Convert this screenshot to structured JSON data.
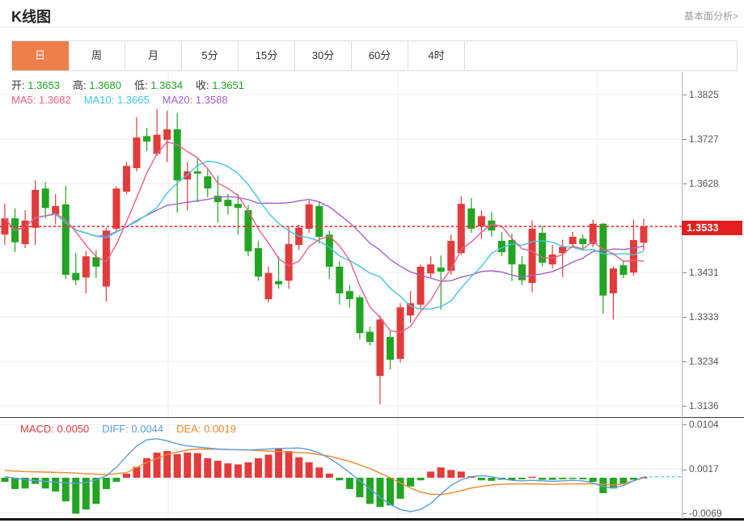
{
  "header": {
    "title": "K线图",
    "link": "基本面分析>"
  },
  "tabs": {
    "items": [
      "日",
      "周",
      "月",
      "5分",
      "15分",
      "30分",
      "60分",
      "4时"
    ],
    "active_index": 0
  },
  "overlay": {
    "ohlc": [
      {
        "name": "open",
        "label": "开:",
        "value": "1.3653"
      },
      {
        "name": "high",
        "label": "高:",
        "value": "1.3680"
      },
      {
        "name": "low",
        "label": "低:",
        "value": "1.3634"
      },
      {
        "name": "close",
        "label": "收:",
        "value": "1.3651"
      }
    ],
    "ma": [
      {
        "name": "ma5",
        "label": "MA5:",
        "value": "1.3682",
        "color": "#ec5f87"
      },
      {
        "name": "ma10",
        "label": "MA10:",
        "value": "1.3665",
        "color": "#3ec7e0"
      },
      {
        "name": "ma20",
        "label": "MA20:",
        "value": "1.3588",
        "color": "#a362c8"
      }
    ],
    "macd": [
      {
        "name": "macd",
        "label": "MACD:",
        "value": "0.0050",
        "color": "#e23b3b"
      },
      {
        "name": "diff",
        "label": "DIFF:",
        "value": "0.0044",
        "color": "#5a9ce0"
      },
      {
        "name": "dea",
        "label": "DEA:",
        "value": "0.0019",
        "color": "#f0882a"
      }
    ]
  },
  "colors": {
    "up": "#e23b3b",
    "down": "#22a522",
    "value_green": "#22a122",
    "ma5": "#ec5f87",
    "ma10": "#3ec7e0",
    "ma20": "#a362c8",
    "diff": "#5a9ce0",
    "dea": "#f0882a",
    "price_line": "#ff2a2a",
    "price_tag_bg": "#e32020",
    "grid": "#ececec",
    "zero_dash": "#6fcfcf"
  },
  "chart_data": {
    "type": "candlestick_with_macd",
    "title": "K线图 (daily K-line with MA5/MA10/MA20 and MACD)",
    "legend_position": "top-left overlay",
    "grid": {
      "on": true,
      "v_lines_x": [
        208,
        492,
        738
      ]
    },
    "main_panel": {
      "price_axis_ticks": [
        "1.3825",
        "1.3727",
        "1.3628",
        "1.3533",
        "1.3431",
        "1.3333",
        "1.3234",
        "1.3136"
      ],
      "highlight_tick_index": 3,
      "ylim": [
        1.3136,
        1.3825
      ],
      "current_price": 1.3533,
      "current_price_label": "1.3533",
      "ma_windows": [
        5,
        10,
        20
      ],
      "candles_format": [
        "open",
        "high",
        "low",
        "close"
      ],
      "candles": [
        [
          1.3515,
          1.3584,
          1.3492,
          1.3551
        ],
        [
          1.3551,
          1.3573,
          1.3476,
          1.3498
        ],
        [
          1.3494,
          1.3569,
          1.3485,
          1.3546
        ],
        [
          1.353,
          1.3635,
          1.3492,
          1.3614
        ],
        [
          1.3617,
          1.3631,
          1.3551,
          1.3574
        ],
        [
          1.356,
          1.3605,
          1.3537,
          1.3578
        ],
        [
          1.3582,
          1.3623,
          1.3417,
          1.3426
        ],
        [
          1.343,
          1.3474,
          1.3403,
          1.3414
        ],
        [
          1.342,
          1.3479,
          1.3385,
          1.3467
        ],
        [
          1.3465,
          1.3481,
          1.3419,
          1.3444
        ],
        [
          1.34,
          1.353,
          1.3367,
          1.3524
        ],
        [
          1.3528,
          1.3622,
          1.3519,
          1.3617
        ],
        [
          1.361,
          1.3676,
          1.3605,
          1.3667
        ],
        [
          1.3662,
          1.3775,
          1.3655,
          1.373
        ],
        [
          1.3733,
          1.3751,
          1.37,
          1.3721
        ],
        [
          1.3694,
          1.3793,
          1.3689,
          1.3736
        ],
        [
          1.3725,
          1.3789,
          1.3676,
          1.3748
        ],
        [
          1.3748,
          1.3784,
          1.3564,
          1.3635
        ],
        [
          1.3637,
          1.3676,
          1.3569,
          1.3655
        ],
        [
          1.3655,
          1.3686,
          1.3587,
          1.365
        ],
        [
          1.3644,
          1.366,
          1.3598,
          1.3617
        ],
        [
          1.3601,
          1.3646,
          1.3542,
          1.3587
        ],
        [
          1.3592,
          1.3605,
          1.356,
          1.3578
        ],
        [
          1.3583,
          1.3605,
          1.3515,
          1.3574
        ],
        [
          1.3569,
          1.358,
          1.3467,
          1.3478
        ],
        [
          1.3485,
          1.3501,
          1.3413,
          1.3422
        ],
        [
          1.3372,
          1.3444,
          1.3365,
          1.343
        ],
        [
          1.3412,
          1.3467,
          1.3395,
          1.3405
        ],
        [
          1.3413,
          1.3533,
          1.3395,
          1.3494
        ],
        [
          1.3492,
          1.3537,
          1.3481,
          1.353
        ],
        [
          1.3528,
          1.3591,
          1.3519,
          1.3582
        ],
        [
          1.3578,
          1.3589,
          1.3495,
          1.351
        ],
        [
          1.3515,
          1.3524,
          1.3417,
          1.3444
        ],
        [
          1.3444,
          1.3456,
          1.336,
          1.3385
        ],
        [
          1.339,
          1.3403,
          1.3353,
          1.3372
        ],
        [
          1.3376,
          1.3381,
          1.3283,
          1.3297
        ],
        [
          1.33,
          1.3311,
          1.327,
          1.3277
        ],
        [
          1.3202,
          1.3336,
          1.3139,
          1.3327
        ],
        [
          1.3288,
          1.3302,
          1.3216,
          1.3238
        ],
        [
          1.324,
          1.3363,
          1.3232,
          1.3354
        ],
        [
          1.3336,
          1.339,
          1.332,
          1.3363
        ],
        [
          1.336,
          1.3449,
          1.335,
          1.3444
        ],
        [
          1.3429,
          1.3467,
          1.342,
          1.3449
        ],
        [
          1.3442,
          1.3469,
          1.3349,
          1.3433
        ],
        [
          1.3435,
          1.3515,
          1.3426,
          1.3501
        ],
        [
          1.3474,
          1.36,
          1.347,
          1.3583
        ],
        [
          1.3573,
          1.3596,
          1.3519,
          1.3528
        ],
        [
          1.3533,
          1.3569,
          1.3505,
          1.3556
        ],
        [
          1.3546,
          1.3565,
          1.351,
          1.3524
        ],
        [
          1.3501,
          1.3521,
          1.3467,
          1.3476
        ],
        [
          1.3503,
          1.3517,
          1.3412,
          1.3449
        ],
        [
          1.3449,
          1.3467,
          1.3403,
          1.3414
        ],
        [
          1.3408,
          1.3546,
          1.3387,
          1.3528
        ],
        [
          1.3519,
          1.3535,
          1.3444,
          1.3453
        ],
        [
          1.3449,
          1.3492,
          1.344,
          1.3471
        ],
        [
          1.3474,
          1.3504,
          1.3421,
          1.3488
        ],
        [
          1.3494,
          1.3521,
          1.3485,
          1.351
        ],
        [
          1.3506,
          1.3515,
          1.3485,
          1.3494
        ],
        [
          1.3494,
          1.3548,
          1.3487,
          1.3539
        ],
        [
          1.3539,
          1.3541,
          1.334,
          1.338
        ],
        [
          1.3385,
          1.3444,
          1.3327,
          1.344
        ],
        [
          1.3447,
          1.3458,
          1.3419,
          1.3426
        ],
        [
          1.3431,
          1.3548,
          1.3424,
          1.3503
        ],
        [
          1.3497,
          1.355,
          1.348,
          1.3533
        ]
      ]
    },
    "macd_panel": {
      "axis_ticks": [
        "0.0104",
        "0.0017",
        "-0.0069"
      ],
      "axis_tick_values": [
        0.0104,
        0.0017,
        -0.0069
      ],
      "value_unit": 0.0001,
      "histogram": [
        -8,
        -22,
        -21,
        -12,
        -21,
        -27,
        -46,
        -70,
        -62,
        -51,
        -22,
        -8,
        8,
        21,
        38,
        49,
        52,
        46,
        49,
        48,
        38,
        33,
        28,
        26,
        30,
        38,
        45,
        57,
        52,
        40,
        30,
        20,
        8,
        -5,
        -22,
        -38,
        -51,
        -57,
        -54,
        -41,
        -17,
        -5,
        12,
        20,
        15,
        12,
        3,
        -5,
        -6,
        -4,
        -5,
        -3,
        2,
        -4,
        -4,
        -3,
        -2,
        -3,
        -8,
        -30,
        -21,
        -13,
        -4,
        1
      ],
      "diff_line": [
        [
          0,
          2
        ],
        [
          2,
          -4
        ],
        [
          4,
          -7
        ],
        [
          6,
          -10
        ],
        [
          7,
          -11
        ],
        [
          8,
          -9
        ],
        [
          9,
          -4
        ],
        [
          10,
          4
        ],
        [
          11,
          20
        ],
        [
          12,
          42
        ],
        [
          13,
          62
        ],
        [
          14,
          74
        ],
        [
          15,
          76
        ],
        [
          16,
          72
        ],
        [
          17,
          66
        ],
        [
          18,
          62
        ],
        [
          19,
          60
        ],
        [
          20,
          58
        ],
        [
          21,
          56
        ],
        [
          22,
          55
        ],
        [
          24,
          54
        ],
        [
          25,
          55
        ],
        [
          27,
          57
        ],
        [
          29,
          58
        ],
        [
          30,
          55
        ],
        [
          31,
          48
        ],
        [
          32,
          38
        ],
        [
          33,
          25
        ],
        [
          34,
          10
        ],
        [
          35,
          -6
        ],
        [
          36,
          -22
        ],
        [
          37,
          -38
        ],
        [
          38,
          -52
        ],
        [
          39,
          -62
        ],
        [
          40,
          -66
        ],
        [
          41,
          -62
        ],
        [
          42,
          -50
        ],
        [
          43,
          -32
        ],
        [
          44,
          -15
        ],
        [
          45,
          -4
        ],
        [
          46,
          2
        ],
        [
          47,
          4
        ],
        [
          48,
          2
        ],
        [
          49,
          -2
        ],
        [
          50,
          -5
        ],
        [
          51,
          -6
        ],
        [
          52,
          -5
        ],
        [
          53,
          -6
        ],
        [
          54,
          -7
        ],
        [
          55,
          -6
        ],
        [
          56,
          -5
        ],
        [
          57,
          -6
        ],
        [
          58,
          -10
        ],
        [
          59,
          -17
        ],
        [
          60,
          -20
        ],
        [
          61,
          -15
        ],
        [
          62,
          -6
        ],
        [
          63,
          1
        ]
      ],
      "dea_line": [
        [
          0,
          14
        ],
        [
          2,
          12
        ],
        [
          4,
          11
        ],
        [
          6,
          10
        ],
        [
          8,
          8
        ],
        [
          10,
          6
        ],
        [
          12,
          10
        ],
        [
          14,
          30
        ],
        [
          16,
          45
        ],
        [
          17,
          50
        ],
        [
          18,
          54
        ],
        [
          19,
          56
        ],
        [
          20,
          56
        ],
        [
          22,
          55
        ],
        [
          24,
          54
        ],
        [
          26,
          52
        ],
        [
          28,
          50
        ],
        [
          30,
          48
        ],
        [
          32,
          42
        ],
        [
          34,
          32
        ],
        [
          36,
          18
        ],
        [
          38,
          0
        ],
        [
          39,
          -10
        ],
        [
          40,
          -20
        ],
        [
          41,
          -28
        ],
        [
          42,
          -32
        ],
        [
          43,
          -33
        ],
        [
          44,
          -30
        ],
        [
          45,
          -25
        ],
        [
          46,
          -20
        ],
        [
          48,
          -14
        ],
        [
          50,
          -12
        ],
        [
          52,
          -12
        ],
        [
          54,
          -13
        ],
        [
          56,
          -12
        ],
        [
          58,
          -12
        ],
        [
          59,
          -13
        ],
        [
          60,
          -14
        ],
        [
          61,
          -12
        ],
        [
          62,
          -6
        ],
        [
          63,
          0
        ]
      ],
      "zero_dash_from_index": 63,
      "zero_dash_value": 2
    }
  }
}
